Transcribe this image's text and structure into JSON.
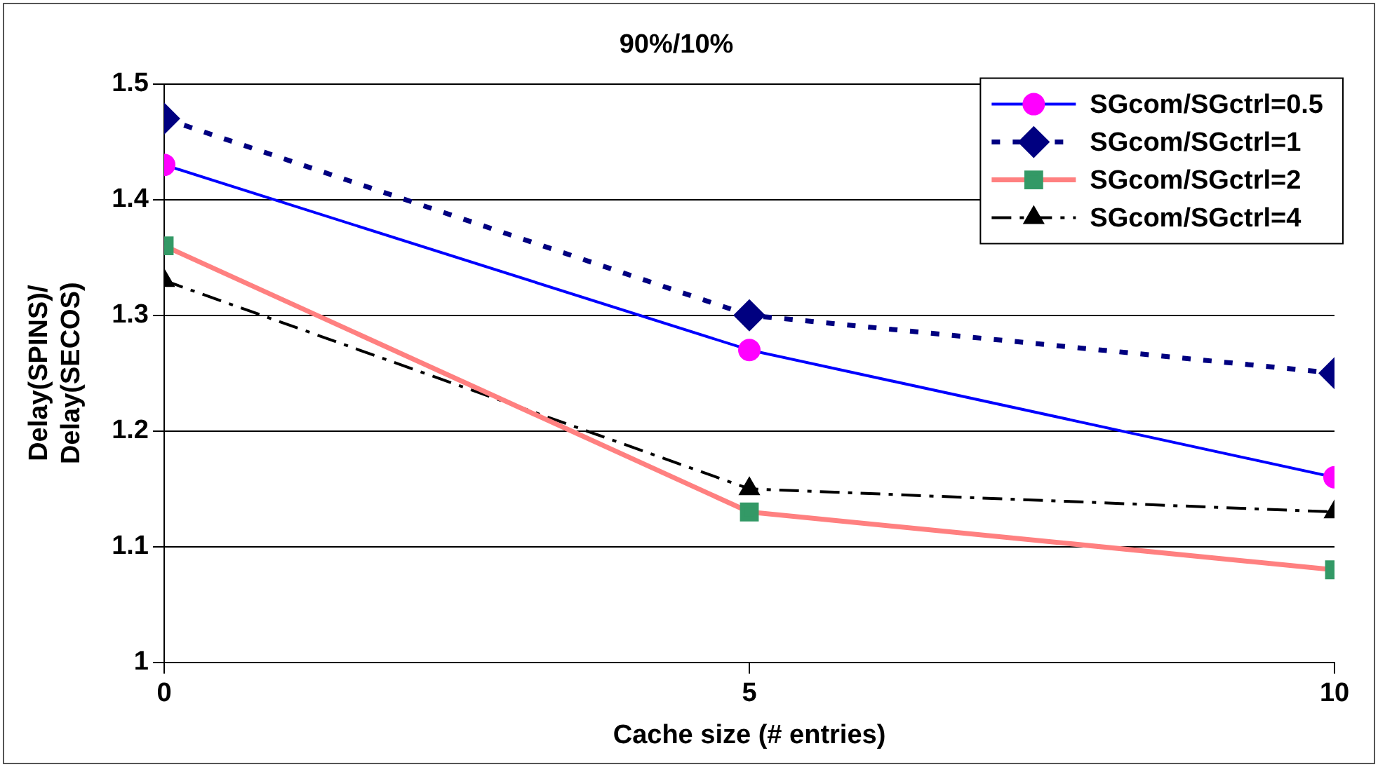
{
  "chart_data": {
    "type": "line",
    "title": "90%/10%",
    "xlabel": "Cache size (# entries)",
    "ylabel": "Delay(SPINS)/\nDelay(SECOS)",
    "x": [
      0,
      5,
      10
    ],
    "xlim": [
      0,
      10
    ],
    "xticks": [
      0,
      5,
      10
    ],
    "ylim": [
      1,
      1.5
    ],
    "yticks": [
      1,
      1.1,
      1.2,
      1.3,
      1.4,
      1.5
    ],
    "grid": "y",
    "legend": "top right",
    "series": [
      {
        "name": "SGcom/SGctrl=0.5",
        "color": "#0000ff",
        "colors": [
          "#ff00ff",
          "#ff00ff",
          "#ff00ff"
        ],
        "marker": "circle",
        "line_style": "solid",
        "values": [
          1.43,
          1.27,
          1.16
        ]
      },
      {
        "name": "SGcom/SGctrl=1",
        "color": "#000080",
        "marker": "diamond",
        "line_style": "dotted",
        "values": [
          1.47,
          1.3,
          1.25
        ]
      },
      {
        "name": "SGcom/SGctrl=2",
        "color": "#ff8080",
        "colors": [
          "#339966",
          "#339966",
          "#339966"
        ],
        "marker": "square",
        "line_style": "solid",
        "values": [
          1.36,
          1.13,
          1.08
        ]
      },
      {
        "name": "SGcom/SGctrl=4",
        "color": "#000000",
        "marker": "triangle",
        "line_style": "dashed",
        "values": [
          1.33,
          1.15,
          1.13
        ]
      }
    ]
  }
}
